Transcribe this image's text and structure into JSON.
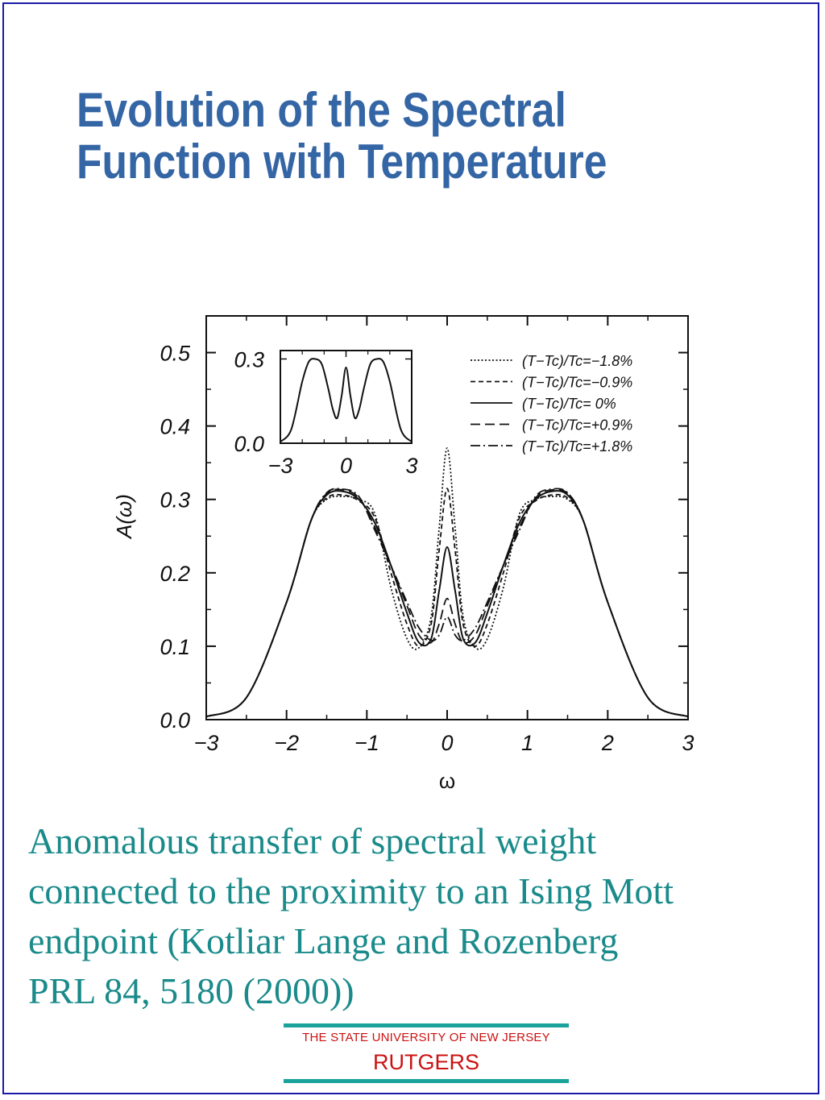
{
  "slide": {
    "title_line1": "Evolution of the Spectral",
    "title_line2": "Function with Temperature",
    "caption_lines": [
      "Anomalous transfer of spectral weight",
      "connected to the proximity to an Ising  Mott",
      "endpoint (Kotliar Lange and Rozenberg",
      "PRL 84, 5180 (2000))"
    ],
    "logo_subtitle": "THE STATE UNIVERSITY OF NEW JERSEY",
    "logo_name": "RUTGERS",
    "colors": {
      "title": "#3465a4",
      "caption": "#1a8a8a",
      "logo_text": "#cc1111",
      "logo_line": "#1aa39a",
      "frame": "#1a1aa8"
    }
  },
  "chart_data": {
    "type": "line",
    "xlabel": "ω",
    "ylabel": "A(ω)",
    "xlim": [
      -3,
      3
    ],
    "ylim": [
      0,
      0.5
    ],
    "xticks": [
      "−3",
      "−2",
      "−1",
      "0",
      "1",
      "2",
      "3"
    ],
    "yticks": [
      "0.0",
      "0.1",
      "0.2",
      "0.3",
      "0.4",
      "0.5"
    ],
    "legend_position": "top-right",
    "x": [
      -3.0,
      -2.5,
      -2.0,
      -1.7,
      -1.5,
      -1.3,
      -1.1,
      -0.9,
      -0.7,
      -0.5,
      -0.35,
      -0.2,
      -0.1,
      0.0,
      0.1,
      0.2,
      0.35,
      0.5,
      0.7,
      0.9,
      1.1,
      1.3,
      1.5,
      1.7,
      2.0,
      2.5,
      3.0
    ],
    "series": [
      {
        "name": "(T−Tc)/Tc=−1.8%",
        "dash": "dotted",
        "values": [
          0.004,
          0.03,
          0.16,
          0.27,
          0.3,
          0.304,
          0.3,
          0.28,
          0.18,
          0.11,
          0.098,
          0.14,
          0.26,
          0.37,
          0.26,
          0.14,
          0.098,
          0.11,
          0.18,
          0.28,
          0.3,
          0.304,
          0.3,
          0.27,
          0.16,
          0.03,
          0.004
        ]
      },
      {
        "name": "(T−Tc)/Tc=−0.9%",
        "dash": "short-dash",
        "values": [
          0.004,
          0.03,
          0.16,
          0.27,
          0.302,
          0.306,
          0.298,
          0.275,
          0.2,
          0.13,
          0.1,
          0.13,
          0.23,
          0.315,
          0.23,
          0.13,
          0.1,
          0.13,
          0.2,
          0.275,
          0.298,
          0.306,
          0.302,
          0.27,
          0.16,
          0.03,
          0.004
        ]
      },
      {
        "name": "(T−Tc)/Tc= 0%",
        "dash": "solid",
        "values": [
          0.004,
          0.03,
          0.16,
          0.27,
          0.306,
          0.311,
          0.3,
          0.268,
          0.21,
          0.145,
          0.105,
          0.11,
          0.175,
          0.235,
          0.175,
          0.11,
          0.105,
          0.145,
          0.21,
          0.268,
          0.3,
          0.311,
          0.306,
          0.27,
          0.16,
          0.03,
          0.004
        ]
      },
      {
        "name": "(T−Tc)/Tc=+0.9%",
        "dash": "long-dash",
        "values": [
          0.004,
          0.03,
          0.16,
          0.27,
          0.308,
          0.313,
          0.302,
          0.262,
          0.21,
          0.155,
          0.115,
          0.105,
          0.13,
          0.165,
          0.13,
          0.105,
          0.115,
          0.155,
          0.21,
          0.262,
          0.302,
          0.313,
          0.308,
          0.27,
          0.16,
          0.03,
          0.004
        ]
      },
      {
        "name": "(T−Tc)/Tc=+1.8%",
        "dash": "dash-dot",
        "values": [
          0.004,
          0.03,
          0.16,
          0.27,
          0.309,
          0.314,
          0.304,
          0.258,
          0.21,
          0.16,
          0.125,
          0.108,
          0.115,
          0.14,
          0.115,
          0.108,
          0.125,
          0.16,
          0.21,
          0.258,
          0.304,
          0.314,
          0.309,
          0.27,
          0.16,
          0.03,
          0.004
        ]
      }
    ],
    "inset": {
      "type": "line",
      "xlim": [
        -3,
        3
      ],
      "ylim": [
        0,
        0.33
      ],
      "xticks": [
        "−3",
        "0",
        "3"
      ],
      "yticks": [
        "0.0",
        "0.3"
      ],
      "x": [
        -3.0,
        -2.5,
        -2.0,
        -1.7,
        -1.4,
        -1.1,
        -0.8,
        -0.6,
        -0.4,
        -0.2,
        0.0,
        0.2,
        0.4,
        0.6,
        0.8,
        1.1,
        1.4,
        1.7,
        2.0,
        2.5,
        3.0
      ],
      "values": [
        0.005,
        0.05,
        0.22,
        0.29,
        0.3,
        0.28,
        0.19,
        0.12,
        0.09,
        0.17,
        0.27,
        0.17,
        0.09,
        0.12,
        0.19,
        0.28,
        0.3,
        0.29,
        0.22,
        0.05,
        0.005
      ]
    }
  }
}
